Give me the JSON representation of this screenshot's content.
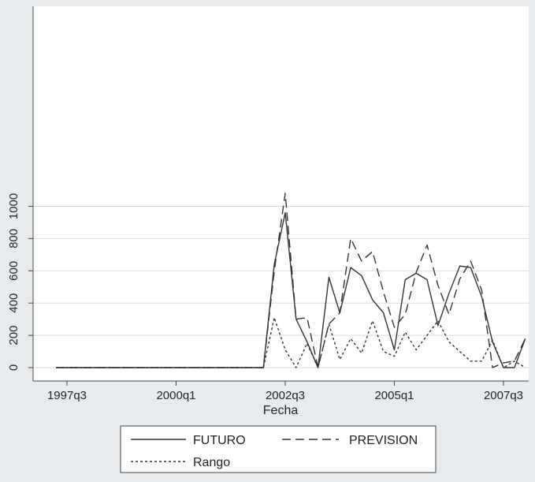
{
  "chart_data": {
    "type": "line",
    "title": "",
    "xlabel": "Fecha",
    "ylabel": "",
    "ylim": [
      0,
      1080
    ],
    "grid": true,
    "legend_position": "bottom",
    "x_ticks": [
      {
        "label": "1997q3",
        "q": 0
      },
      {
        "label": "2000q1",
        "q": 10
      },
      {
        "label": "2002q3",
        "q": 20
      },
      {
        "label": "2005q1",
        "q": 30
      },
      {
        "label": "2007q3",
        "q": 40
      }
    ],
    "y_ticks": [
      0,
      200,
      400,
      600,
      800,
      1000
    ],
    "series": [
      {
        "name": "FUTURO",
        "style": "solid",
        "color": "#333333",
        "x": [
          -1,
          18,
          19,
          20,
          21,
          22,
          23,
          24,
          25,
          26,
          27,
          28,
          29,
          30,
          31,
          32,
          33,
          34,
          35,
          36,
          37,
          38,
          39,
          40,
          41
        ],
        "values": [
          0,
          0,
          640,
          960,
          300,
          160,
          0,
          560,
          340,
          620,
          570,
          420,
          340,
          110,
          545,
          585,
          545,
          260,
          460,
          630,
          620,
          440,
          160,
          0,
          0
        ],
        "extra": {
          "x": [
            42
          ],
          "values": [
            180
          ]
        }
      },
      {
        "name": "PREVISION",
        "style": "dashed",
        "color": "#333333",
        "x": [
          -1,
          18,
          19,
          20,
          21,
          22,
          23,
          24,
          25,
          26,
          27,
          28,
          29,
          30,
          31,
          32,
          33,
          34,
          35,
          36,
          37,
          38,
          39,
          40,
          41,
          42
        ],
        "values": [
          0,
          0,
          600,
          1080,
          300,
          310,
          0,
          270,
          340,
          800,
          660,
          720,
          470,
          250,
          330,
          590,
          760,
          510,
          330,
          550,
          660,
          480,
          0,
          30,
          40,
          180
        ]
      },
      {
        "name": "Rango",
        "style": "dotted",
        "color": "#333333",
        "x": [
          -1,
          18,
          19,
          20,
          21,
          22,
          23,
          24,
          25,
          26,
          27,
          28,
          29,
          30,
          31,
          32,
          33,
          34,
          35,
          36,
          37,
          38,
          39,
          40,
          41,
          42
        ],
        "values": [
          0,
          0,
          310,
          110,
          0,
          150,
          0,
          270,
          50,
          180,
          90,
          290,
          100,
          70,
          220,
          110,
          200,
          290,
          160,
          100,
          40,
          40,
          170,
          0,
          40,
          0
        ]
      }
    ]
  },
  "legend": {
    "items": [
      {
        "label": "FUTURO",
        "style": "solid"
      },
      {
        "label": "PREVISION",
        "style": "dashed"
      },
      {
        "label": "Rango",
        "style": "dotted"
      }
    ]
  }
}
